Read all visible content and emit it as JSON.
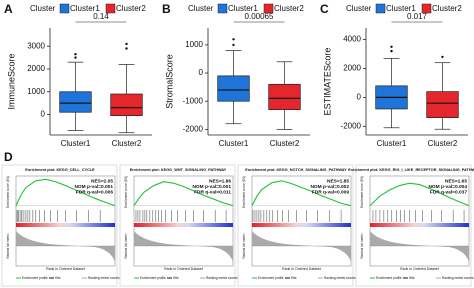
{
  "chart_data": [
    {
      "type": "box",
      "panel": "A",
      "ylabel": "ImmuneScore",
      "annotation": "0.14",
      "legend_title": "Cluster",
      "categories": [
        "Cluster1",
        "Cluster2"
      ],
      "series": [
        {
          "name": "Cluster1",
          "color": "#1f74d9",
          "min": -700,
          "q1": 100,
          "median": 500,
          "q3": 1000,
          "max": 2300,
          "outliers": [
            2500,
            2650
          ]
        },
        {
          "name": "Cluster2",
          "color": "#e5262c",
          "min": -800,
          "q1": -50,
          "median": 300,
          "q3": 900,
          "max": 2200,
          "outliers": [
            2900,
            3100
          ]
        }
      ],
      "ylim": [
        -900,
        3800
      ],
      "yticks": [
        0,
        1000,
        2000,
        3000
      ]
    },
    {
      "type": "box",
      "panel": "B",
      "ylabel": "StromalScore",
      "annotation": "0.00065",
      "legend_title": "Cluster",
      "categories": [
        "Cluster1",
        "Cluster2"
      ],
      "series": [
        {
          "name": "Cluster1",
          "color": "#1f74d9",
          "min": -1800,
          "q1": -1000,
          "median": -600,
          "q3": -100,
          "max": 800,
          "outliers": [
            1000,
            1200
          ]
        },
        {
          "name": "Cluster2",
          "color": "#e5262c",
          "min": -2000,
          "q1": -1300,
          "median": -900,
          "q3": -400,
          "max": 400,
          "outliers": []
        }
      ],
      "ylim": [
        -2200,
        1600
      ],
      "yticks": [
        -2000,
        -1000,
        0,
        1000
      ]
    },
    {
      "type": "box",
      "panel": "C",
      "ylabel": "ESTIMATEScore",
      "annotation": "0.017",
      "legend_title": "Cluster",
      "categories": [
        "Cluster1",
        "Cluster2"
      ],
      "series": [
        {
          "name": "Cluster1",
          "color": "#1f74d9",
          "min": -2100,
          "q1": -800,
          "median": 0,
          "q3": 800,
          "max": 2700,
          "outliers": [
            3200,
            3500
          ]
        },
        {
          "name": "Cluster2",
          "color": "#e5262c",
          "min": -2200,
          "q1": -1400,
          "median": -400,
          "q3": 400,
          "max": 2400,
          "outliers": [
            2800
          ]
        }
      ],
      "ylim": [
        -2600,
        4800
      ],
      "yticks": [
        -2000,
        0,
        2000,
        4000
      ]
    },
    {
      "type": "gsea",
      "panel": "D",
      "title": "Enrichment plot: KEGG_CELL_CYCLE",
      "stats": [
        "NES=2.05",
        "NOM p-val=0.001",
        "FDR q-val=0.006"
      ],
      "ylabel": "Enrichment score (ES)",
      "y2label": "Ranked list metric",
      "xlabel": "Rank in Ordered Dataset",
      "legend": [
        "Enrichment profile",
        "Hits",
        "Ranking metric scores"
      ],
      "color": "#22c03a",
      "x": [
        0,
        0.05,
        0.1,
        0.2,
        0.3,
        0.4,
        0.5,
        0.6,
        0.7,
        0.8,
        0.9,
        1
      ],
      "values": [
        0,
        0.22,
        0.38,
        0.52,
        0.55,
        0.5,
        0.42,
        0.33,
        0.24,
        0.15,
        0.07,
        0
      ],
      "ylim": [
        -0.05,
        0.62
      ],
      "hits": [
        0.01,
        0.02,
        0.03,
        0.05,
        0.06,
        0.08,
        0.1,
        0.12,
        0.14,
        0.17,
        0.2,
        0.24,
        0.29,
        0.35,
        0.42,
        0.5,
        0.61,
        0.73,
        0.85
      ]
    },
    {
      "type": "gsea",
      "title": "Enrichment plot: KEGG_WNT_SIGNALING_PATHWAY",
      "stats": [
        "NES=1.86",
        "NOM p-val=0.001",
        "FDR q-val=0.011"
      ],
      "ylabel": "Enrichment score (ES)",
      "y2label": "Ranked list metric",
      "xlabel": "Rank in Ordered Dataset",
      "legend": [
        "Enrichment profile",
        "Hits",
        "Ranking metric scores"
      ],
      "color": "#22c03a",
      "x": [
        0,
        0.05,
        0.1,
        0.2,
        0.3,
        0.4,
        0.5,
        0.6,
        0.7,
        0.8,
        0.9,
        1
      ],
      "values": [
        0,
        0.15,
        0.28,
        0.42,
        0.5,
        0.47,
        0.4,
        0.31,
        0.22,
        0.14,
        0.06,
        0
      ],
      "ylim": [
        -0.05,
        0.62
      ],
      "hits": [
        0.02,
        0.04,
        0.06,
        0.09,
        0.11,
        0.13,
        0.16,
        0.19,
        0.22,
        0.25,
        0.28,
        0.32,
        0.38,
        0.44,
        0.52,
        0.6,
        0.7,
        0.82,
        0.93
      ]
    },
    {
      "type": "gsea",
      "title": "Enrichment plot: KEGG_NOTCH_SIGNALING_PATHWAY",
      "stats": [
        "NES=1.85",
        "NOM p-val=0.002",
        "FDR q-val=0.009"
      ],
      "ylabel": "Enrichment score (ES)",
      "y2label": "Ranked list metric",
      "xlabel": "Rank in Ordered Dataset",
      "legend": [
        "Enrichment profile",
        "Hits",
        "Ranking metric scores"
      ],
      "color": "#22c03a",
      "x": [
        0,
        0.05,
        0.1,
        0.2,
        0.3,
        0.4,
        0.5,
        0.6,
        0.7,
        0.8,
        0.9,
        1
      ],
      "values": [
        0,
        0.2,
        0.34,
        0.48,
        0.52,
        0.46,
        0.38,
        0.3,
        0.21,
        0.13,
        0.05,
        0
      ],
      "ylim": [
        -0.05,
        0.62
      ],
      "hits": [
        0.01,
        0.03,
        0.05,
        0.07,
        0.09,
        0.12,
        0.15,
        0.18,
        0.21,
        0.26,
        0.31,
        0.37,
        0.45,
        0.55,
        0.66,
        0.78,
        0.9
      ]
    },
    {
      "type": "gsea",
      "title": "Enrichment plot: KEGG_RIG_I_LIKE_RECEPTOR_SIGNALING_PATHWAY",
      "stats": [
        "NES=1.65",
        "NOM p-val=0.004",
        "FDR q-val=0.037"
      ],
      "ylabel": "Enrichment score (ES)",
      "y2label": "Ranked list metric",
      "xlabel": "Rank in Ordered Dataset",
      "legend": [
        "Enrichment profile",
        "Hits",
        "Ranking metric scores"
      ],
      "color": "#22c03a",
      "x": [
        0,
        0.05,
        0.1,
        0.2,
        0.3,
        0.4,
        0.5,
        0.6,
        0.7,
        0.8,
        0.9,
        1
      ],
      "values": [
        0,
        0.1,
        0.2,
        0.33,
        0.42,
        0.47,
        0.44,
        0.36,
        0.27,
        0.17,
        0.08,
        0
      ],
      "ylim": [
        -0.05,
        0.62
      ],
      "hits": [
        0.03,
        0.06,
        0.1,
        0.14,
        0.18,
        0.22,
        0.27,
        0.31,
        0.35,
        0.4,
        0.46,
        0.53,
        0.62,
        0.72,
        0.84,
        0.95
      ]
    }
  ]
}
